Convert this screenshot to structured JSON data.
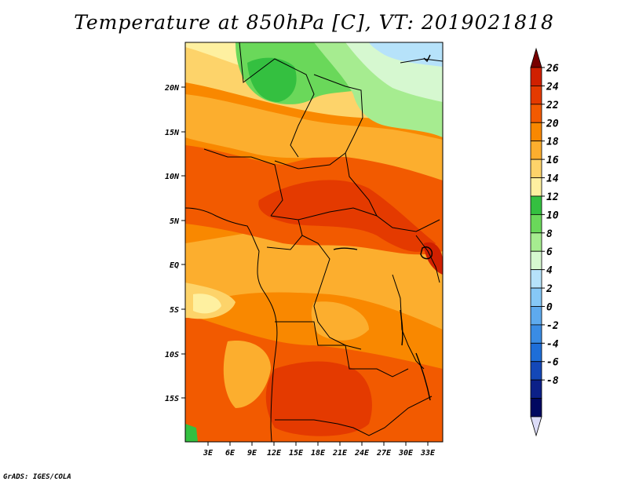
{
  "title": "Temperature at 850hPa [C], VT: 2019021818",
  "credit": "GrADS: IGES/COLA",
  "map": {
    "lat_ticks": [
      "20N",
      "15N",
      "10N",
      "5N",
      "EQ",
      "5S",
      "10S",
      "15S"
    ],
    "lon_ticks": [
      "3E",
      "6E",
      "9E",
      "12E",
      "15E",
      "18E",
      "21E",
      "24E",
      "27E",
      "30E",
      "33E"
    ]
  },
  "colorbar": {
    "labels": [
      "26",
      "24",
      "22",
      "20",
      "18",
      "16",
      "14",
      "12",
      "10",
      "8",
      "6",
      "4",
      "2",
      "0",
      "-2",
      "-4",
      "-6",
      "-8"
    ],
    "colors": [
      "#780000",
      "#d02000",
      "#e43a00",
      "#f25a00",
      "#f98800",
      "#fcae2e",
      "#fdd36a",
      "#fef0a0",
      "#34c040",
      "#6ad85a",
      "#a6ec90",
      "#d6f8d0",
      "#b6e2fa",
      "#86c8f6",
      "#5eaaee",
      "#3a8ce4",
      "#1e6ed8",
      "#1448b8",
      "#0c2088",
      "#000860",
      "#dcdcf8"
    ]
  }
}
